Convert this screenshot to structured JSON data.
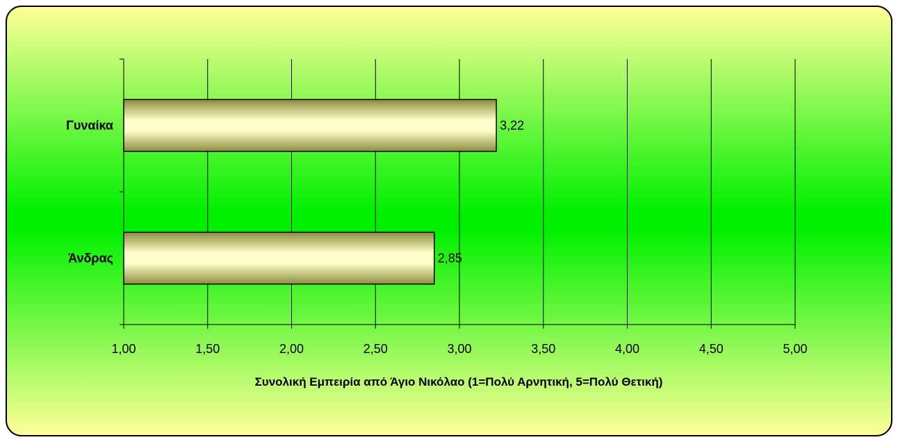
{
  "chart_data": {
    "type": "bar",
    "orientation": "horizontal",
    "categories": [
      "Γυναίκα",
      "Άνδρας"
    ],
    "values": [
      3.22,
      2.85
    ],
    "data_labels": [
      "3,22",
      "2,85"
    ],
    "xlabel": "Συνολική Εμπειρία από Άγιο Νικόλαο (1=Πολύ Αρνητική, 5=Πολύ Θετική)",
    "ylabel": "",
    "title": "",
    "xlim": [
      1.0,
      5.0
    ],
    "xticks": [
      1.0,
      1.5,
      2.0,
      2.5,
      3.0,
      3.5,
      4.0,
      4.5,
      5.0
    ],
    "xtick_labels": [
      "1,00",
      "1,50",
      "2,00",
      "2,50",
      "3,00",
      "3,50",
      "4,00",
      "4,50",
      "5,00"
    ],
    "grid": "vertical",
    "legend": "none",
    "colors": {
      "background_edge": "#ffff99",
      "background_center": "#00f000",
      "bar_light": "#ffffcc",
      "bar_dark": "#8c8c3c",
      "border": "#000000"
    }
  }
}
